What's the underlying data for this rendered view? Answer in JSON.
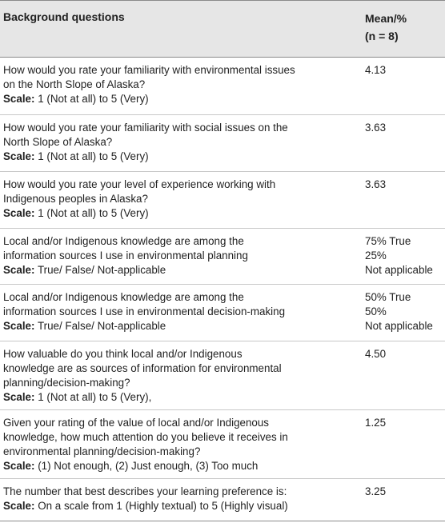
{
  "header": {
    "col1": "Background questions",
    "col2_line1": "Mean/%",
    "col2_line2": "(n = 8)"
  },
  "scale_label": "Scale:",
  "rows": [
    {
      "q_lines": [
        "How would you rate your familiarity with environmental issues",
        "on the North Slope of Alaska?"
      ],
      "scale": "1 (Not at all) to 5 (Very)",
      "values": [
        "4.13"
      ]
    },
    {
      "q_lines": [
        "How would you rate your familiarity with social issues on the",
        "North Slope of Alaska?"
      ],
      "scale": "1 (Not at all) to 5 (Very)",
      "values": [
        "3.63"
      ]
    },
    {
      "q_lines": [
        "How would you rate your level of experience working with",
        "Indigenous peoples in Alaska?"
      ],
      "scale": "1 (Not at all) to 5 (Very)",
      "values": [
        "3.63"
      ]
    },
    {
      "q_lines": [
        "Local and/or Indigenous knowledge are among the",
        "information sources I use in environmental planning"
      ],
      "scale": "True/ False/ Not-applicable",
      "values": [
        "75% True",
        "25%",
        "Not applicable"
      ]
    },
    {
      "q_lines": [
        "Local and/or Indigenous knowledge are among the",
        "information sources I use in environmental decision-making"
      ],
      "scale": "True/ False/ Not-applicable",
      "values": [
        "50% True",
        "50%",
        "Not applicable"
      ]
    },
    {
      "q_lines": [
        "How valuable do you think local and/or Indigenous",
        "knowledge are as sources of information for environmental",
        "planning/decision-making?"
      ],
      "scale": "1 (Not at all) to 5 (Very),",
      "values": [
        "4.50"
      ]
    },
    {
      "q_lines": [
        "Given your rating of the value of local and/or Indigenous",
        "knowledge, how much attention do you believe it receives in",
        "environmental planning/decision-making?"
      ],
      "scale": "(1) Not enough, (2) Just enough, (3) Too much",
      "values": [
        "1.25"
      ]
    },
    {
      "q_lines": [
        "The number that best describes your learning preference is:"
      ],
      "scale": "On a scale from 1 (Highly textual) to 5 (Highly visual)",
      "values": [
        "3.25"
      ]
    }
  ]
}
